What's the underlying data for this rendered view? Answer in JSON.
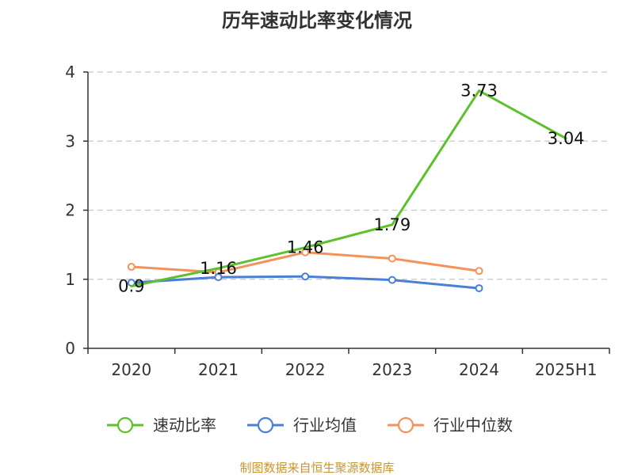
{
  "chart_data": {
    "type": "line",
    "title": "历年速动比率变化情况",
    "xlabel": "",
    "ylabel": "",
    "categories": [
      "2020",
      "2021",
      "2022",
      "2023",
      "2024",
      "2025H1"
    ],
    "ylim": [
      0,
      4
    ],
    "yticks": [
      "0",
      "1",
      "2",
      "3",
      "4"
    ],
    "grid": true,
    "legend_position": "bottom",
    "series": [
      {
        "name": "速动比率",
        "color": "#5cc22b",
        "values": [
          0.9,
          1.16,
          1.46,
          1.79,
          3.73,
          3.04
        ],
        "labels": [
          "0.9",
          "1.16",
          "1.46",
          "1.79",
          "3.73",
          "3.04"
        ],
        "show_labels": true,
        "show_markers": false
      },
      {
        "name": "行业均值",
        "color": "#4a7fd8",
        "values": [
          0.95,
          1.03,
          1.04,
          0.99,
          0.87,
          null
        ],
        "show_labels": false,
        "show_markers": true
      },
      {
        "name": "行业中位数",
        "color": "#f5915a",
        "values": [
          1.18,
          1.1,
          1.39,
          1.3,
          1.12,
          null
        ],
        "show_labels": false,
        "show_markers": true
      }
    ]
  },
  "source_text": "制图数据来自恒生聚源数据库"
}
